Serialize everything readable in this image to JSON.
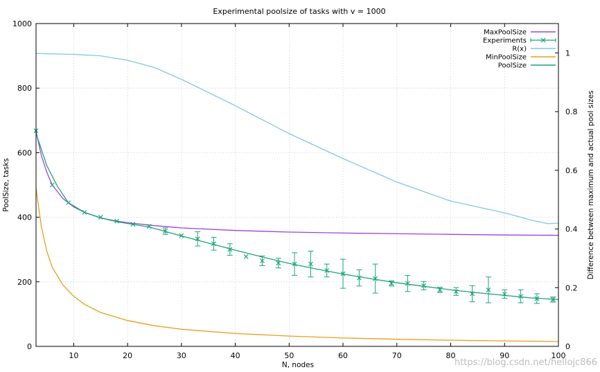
{
  "chart_data": {
    "type": "line",
    "title": "Experimental poolsize of tasks with v = 1000",
    "xlabel": "N, nodes",
    "ylabel": "PoolSize, tasks",
    "y2label": "Difference between maximum and actual pool sizes",
    "xlim": [
      3,
      100
    ],
    "ylim": [
      0,
      1000
    ],
    "y2lim": [
      0,
      1.1
    ],
    "xticks": [
      10,
      20,
      30,
      40,
      50,
      60,
      70,
      80,
      90,
      100
    ],
    "yticks": [
      0,
      200,
      400,
      600,
      800,
      1000
    ],
    "y2ticks": [
      0,
      0.2,
      0.4,
      0.6,
      0.8,
      1
    ],
    "grid": true,
    "legend_position": "top-right",
    "series": [
      {
        "name": "MaxPoolSize",
        "color": "#a040e0",
        "axis": "y",
        "style": "line",
        "x": [
          3,
          4,
          5,
          6,
          8,
          10,
          12,
          15,
          18,
          20,
          25,
          30,
          40,
          50,
          60,
          70,
          80,
          90,
          100
        ],
        "y": [
          666,
          590,
          540,
          500,
          458,
          432,
          415,
          398,
          388,
          383,
          374,
          367,
          359,
          354,
          351,
          349,
          347,
          345,
          344
        ]
      },
      {
        "name": "Experiments",
        "color": "#1aa37a",
        "axis": "y",
        "style": "errorbars",
        "x": [
          3,
          6,
          9,
          12,
          15,
          18,
          21,
          24,
          27,
          30,
          33,
          36,
          39,
          42,
          45,
          48,
          51,
          54,
          57,
          60,
          63,
          66,
          69,
          72,
          75,
          78,
          81,
          84,
          87,
          90,
          93,
          96,
          99
        ],
        "y": [
          668,
          500,
          445,
          415,
          400,
          388,
          378,
          372,
          357,
          343,
          333,
          318,
          300,
          278,
          265,
          258,
          255,
          255,
          235,
          225,
          212,
          210,
          195,
          195,
          188,
          175,
          170,
          163,
          175,
          162,
          155,
          148,
          145
        ],
        "err": [
          0,
          0,
          0,
          0,
          0,
          0,
          0,
          0,
          10,
          0,
          22,
          20,
          18,
          0,
          15,
          15,
          35,
          40,
          20,
          45,
          25,
          45,
          8,
          25,
          13,
          8,
          12,
          25,
          40,
          13,
          20,
          15,
          8
        ]
      },
      {
        "name": "R(x)",
        "color": "#7fc6ea",
        "axis": "y2",
        "style": "line",
        "x": [
          3,
          10,
          15,
          20,
          25,
          30,
          40,
          50,
          60,
          70,
          80,
          90,
          95,
          98,
          100
        ],
        "y": [
          0.998,
          0.995,
          0.99,
          0.975,
          0.95,
          0.91,
          0.82,
          0.725,
          0.64,
          0.56,
          0.495,
          0.455,
          0.43,
          0.418,
          0.42
        ]
      },
      {
        "name": "MinPoolSize",
        "color": "#e69f1a",
        "axis": "y",
        "style": "line",
        "x": [
          3,
          4,
          5,
          6,
          8,
          10,
          12,
          15,
          20,
          25,
          30,
          40,
          50,
          60,
          70,
          80,
          90,
          100
        ],
        "y": [
          490,
          370,
          295,
          245,
          190,
          155,
          130,
          105,
          80,
          64,
          53,
          40,
          32,
          26,
          22,
          19,
          17,
          15
        ]
      },
      {
        "name": "PoolSize",
        "color": "#1aa37a",
        "axis": "y",
        "style": "line",
        "x": [
          3,
          5,
          7,
          9,
          12,
          15,
          18,
          21,
          24,
          27,
          30,
          35,
          40,
          45,
          50,
          55,
          60,
          65,
          70,
          75,
          80,
          85,
          90,
          95,
          100
        ],
        "y": [
          660,
          560,
          495,
          445,
          415,
          398,
          386,
          378,
          370,
          356,
          342,
          320,
          298,
          277,
          257,
          240,
          224,
          210,
          197,
          186,
          175,
          166,
          158,
          150,
          145
        ]
      }
    ]
  },
  "watermark": "https://blog.csdn.net/hellojc866"
}
